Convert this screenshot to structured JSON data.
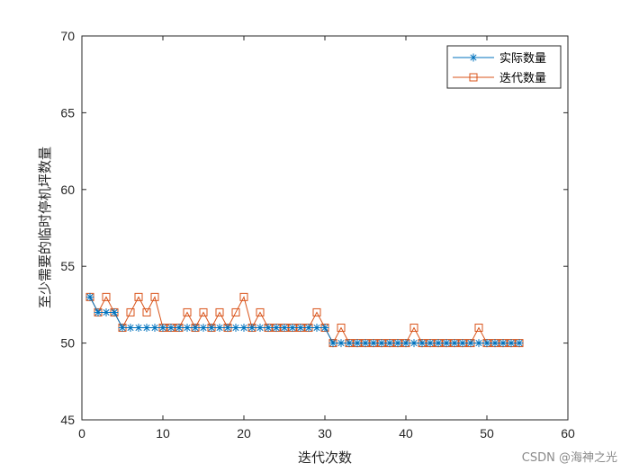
{
  "chart_data": {
    "type": "line",
    "title": "",
    "xlabel": "迭代次数",
    "ylabel": "至少需要的临时停机坪数量",
    "xlim": [
      0,
      60
    ],
    "ylim": [
      45,
      70
    ],
    "x_ticks": [
      0,
      10,
      20,
      30,
      40,
      50,
      60
    ],
    "y_ticks": [
      45,
      50,
      55,
      60,
      65,
      70
    ],
    "grid": false,
    "legend_position": "top-right",
    "x": [
      1,
      2,
      3,
      4,
      5,
      6,
      7,
      8,
      9,
      10,
      11,
      12,
      13,
      14,
      15,
      16,
      17,
      18,
      19,
      20,
      21,
      22,
      23,
      24,
      25,
      26,
      27,
      28,
      29,
      30,
      31,
      32,
      33,
      34,
      35,
      36,
      37,
      38,
      39,
      40,
      41,
      42,
      43,
      44,
      45,
      46,
      47,
      48,
      49,
      50,
      51,
      52,
      53,
      54
    ],
    "series": [
      {
        "name": "实际数量",
        "color": "#0072BD",
        "marker": "asterisk",
        "values": [
          53,
          52,
          52,
          52,
          51,
          51,
          51,
          51,
          51,
          51,
          51,
          51,
          51,
          51,
          51,
          51,
          51,
          51,
          51,
          51,
          51,
          51,
          51,
          51,
          51,
          51,
          51,
          51,
          51,
          51,
          50,
          50,
          50,
          50,
          50,
          50,
          50,
          50,
          50,
          50,
          50,
          50,
          50,
          50,
          50,
          50,
          50,
          50,
          50,
          50,
          50,
          50,
          50,
          50
        ]
      },
      {
        "name": "迭代数量",
        "color": "#D95319",
        "marker": "square",
        "values": [
          53,
          52,
          53,
          52,
          51,
          52,
          53,
          52,
          53,
          51,
          51,
          51,
          52,
          51,
          52,
          51,
          52,
          51,
          52,
          53,
          51,
          52,
          51,
          51,
          51,
          51,
          51,
          51,
          52,
          51,
          50,
          51,
          50,
          50,
          50,
          50,
          50,
          50,
          50,
          50,
          51,
          50,
          50,
          50,
          50,
          50,
          50,
          50,
          51,
          50,
          50,
          50,
          50,
          50
        ]
      }
    ]
  },
  "watermark": "CSDN @海神之光"
}
